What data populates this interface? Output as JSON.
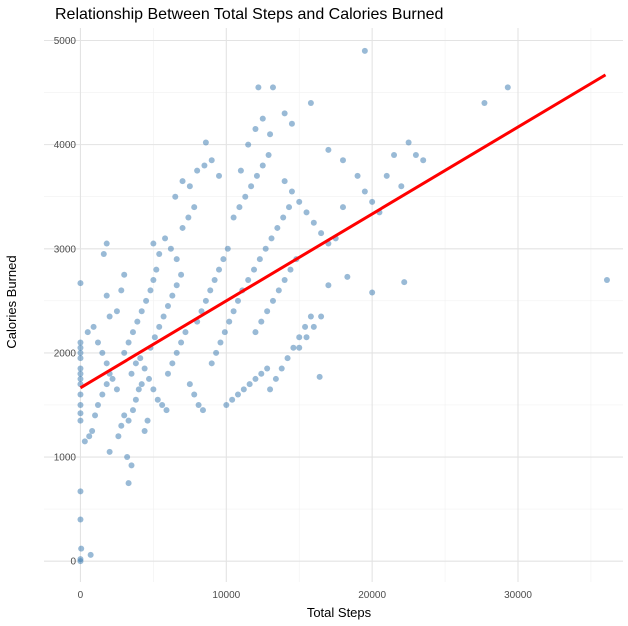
{
  "chart_data": {
    "type": "scatter",
    "title": "Relationship Between Total Steps and Calories Burned",
    "xlabel": "Total Steps",
    "ylabel": "Calories Burned",
    "xlim": [
      -2500,
      37200
    ],
    "ylim": [
      -200,
      5120
    ],
    "x_ticks": [
      0,
      10000,
      20000,
      30000
    ],
    "y_ticks": [
      0,
      1000,
      2000,
      3000,
      4000,
      5000
    ],
    "x_tick_labels": [
      "0",
      "10000",
      "20000",
      "30000"
    ],
    "y_tick_labels": [
      "0",
      "1000",
      "2000",
      "3000",
      "4000",
      "5000"
    ],
    "grid": true,
    "point_color": "#4682B4",
    "point_opacity": 0.55,
    "trend_line": {
      "color": "#FF0000",
      "x": [
        0,
        36000
      ],
      "y": [
        1665,
        4670
      ]
    },
    "points": [
      [
        0,
        0
      ],
      [
        0,
        20
      ],
      [
        50,
        120
      ],
      [
        0,
        400
      ],
      [
        0,
        670
      ],
      [
        700,
        60
      ],
      [
        0,
        1350
      ],
      [
        0,
        1420
      ],
      [
        0,
        1500
      ],
      [
        0,
        1600
      ],
      [
        0,
        1700
      ],
      [
        0,
        1750
      ],
      [
        0,
        1800
      ],
      [
        0,
        1850
      ],
      [
        0,
        1950
      ],
      [
        0,
        2000
      ],
      [
        0,
        2050
      ],
      [
        0,
        2100
      ],
      [
        0,
        2670
      ],
      [
        300,
        1150
      ],
      [
        600,
        1200
      ],
      [
        800,
        1250
      ],
      [
        1000,
        1400
      ],
      [
        1200,
        1500
      ],
      [
        1500,
        1600
      ],
      [
        1800,
        1700
      ],
      [
        2000,
        1050
      ],
      [
        500,
        2200
      ],
      [
        900,
        2250
      ],
      [
        1200,
        2100
      ],
      [
        1500,
        2000
      ],
      [
        1800,
        1900
      ],
      [
        2000,
        1800
      ],
      [
        2200,
        1750
      ],
      [
        2500,
        1650
      ],
      [
        2000,
        2350
      ],
      [
        1800,
        2550
      ],
      [
        1600,
        2950
      ],
      [
        1800,
        3050
      ],
      [
        2500,
        2400
      ],
      [
        2800,
        2600
      ],
      [
        3000,
        2750
      ],
      [
        3200,
        1000
      ],
      [
        3300,
        750
      ],
      [
        3500,
        920
      ],
      [
        2600,
        1200
      ],
      [
        2800,
        1300
      ],
      [
        3000,
        1400
      ],
      [
        3300,
        1350
      ],
      [
        3600,
        1450
      ],
      [
        3800,
        1550
      ],
      [
        4000,
        1650
      ],
      [
        4200,
        1700
      ],
      [
        4400,
        1250
      ],
      [
        4600,
        1350
      ],
      [
        3000,
        2000
      ],
      [
        3300,
        2100
      ],
      [
        3600,
        2200
      ],
      [
        3900,
        2300
      ],
      [
        4200,
        2400
      ],
      [
        4500,
        2500
      ],
      [
        4800,
        2600
      ],
      [
        5000,
        2700
      ],
      [
        5200,
        2800
      ],
      [
        3500,
        1800
      ],
      [
        3800,
        1900
      ],
      [
        4100,
        1950
      ],
      [
        4400,
        1850
      ],
      [
        4700,
        1750
      ],
      [
        5000,
        1650
      ],
      [
        5300,
        1550
      ],
      [
        5600,
        1500
      ],
      [
        5900,
        1450
      ],
      [
        4800,
        2050
      ],
      [
        5100,
        2150
      ],
      [
        5400,
        2250
      ],
      [
        5700,
        2350
      ],
      [
        6000,
        2450
      ],
      [
        6300,
        2550
      ],
      [
        6600,
        2650
      ],
      [
        6900,
        2750
      ],
      [
        5000,
        3050
      ],
      [
        5400,
        2950
      ],
      [
        5800,
        3100
      ],
      [
        6200,
        3000
      ],
      [
        6600,
        2900
      ],
      [
        7000,
        3200
      ],
      [
        7400,
        3300
      ],
      [
        7800,
        3400
      ],
      [
        6000,
        1800
      ],
      [
        6300,
        1900
      ],
      [
        6600,
        2000
      ],
      [
        6900,
        2100
      ],
      [
        7200,
        2200
      ],
      [
        7500,
        1700
      ],
      [
        7800,
        1600
      ],
      [
        8100,
        1500
      ],
      [
        8400,
        1450
      ],
      [
        6500,
        3500
      ],
      [
        7000,
        3650
      ],
      [
        7500,
        3600
      ],
      [
        8000,
        3750
      ],
      [
        8500,
        3800
      ],
      [
        9000,
        3850
      ],
      [
        8600,
        4020
      ],
      [
        9500,
        3700
      ],
      [
        8000,
        2300
      ],
      [
        8300,
        2400
      ],
      [
        8600,
        2500
      ],
      [
        8900,
        2600
      ],
      [
        9200,
        2700
      ],
      [
        9500,
        2800
      ],
      [
        9800,
        2900
      ],
      [
        10100,
        3000
      ],
      [
        9000,
        1900
      ],
      [
        9300,
        2000
      ],
      [
        9600,
        2100
      ],
      [
        9900,
        2200
      ],
      [
        10200,
        2300
      ],
      [
        10500,
        2400
      ],
      [
        10800,
        2500
      ],
      [
        11100,
        2600
      ],
      [
        10000,
        1500
      ],
      [
        10400,
        1550
      ],
      [
        10800,
        1600
      ],
      [
        11200,
        1650
      ],
      [
        11600,
        1700
      ],
      [
        12000,
        1750
      ],
      [
        12400,
        1800
      ],
      [
        12800,
        1850
      ],
      [
        10500,
        3300
      ],
      [
        10900,
        3400
      ],
      [
        11300,
        3500
      ],
      [
        11700,
        3600
      ],
      [
        12100,
        3700
      ],
      [
        12500,
        3800
      ],
      [
        12900,
        3900
      ],
      [
        11000,
        3750
      ],
      [
        11500,
        4000
      ],
      [
        12000,
        4150
      ],
      [
        12500,
        4250
      ],
      [
        13000,
        4100
      ],
      [
        12200,
        4550
      ],
      [
        13200,
        4550
      ],
      [
        14000,
        4300
      ],
      [
        14500,
        4200
      ],
      [
        15800,
        4400
      ],
      [
        11500,
        2700
      ],
      [
        11900,
        2800
      ],
      [
        12300,
        2900
      ],
      [
        12700,
        3000
      ],
      [
        13100,
        3100
      ],
      [
        13500,
        3200
      ],
      [
        13900,
        3300
      ],
      [
        14300,
        3400
      ],
      [
        12000,
        2200
      ],
      [
        12400,
        2300
      ],
      [
        12800,
        2400
      ],
      [
        13200,
        2500
      ],
      [
        13600,
        2600
      ],
      [
        14000,
        2700
      ],
      [
        14400,
        2800
      ],
      [
        14800,
        2900
      ],
      [
        13000,
        1650
      ],
      [
        13400,
        1750
      ],
      [
        13800,
        1850
      ],
      [
        14200,
        1950
      ],
      [
        14600,
        2050
      ],
      [
        15000,
        2150
      ],
      [
        15400,
        2250
      ],
      [
        15800,
        2350
      ],
      [
        14000,
        3650
      ],
      [
        14500,
        3550
      ],
      [
        15000,
        3450
      ],
      [
        15500,
        3350
      ],
      [
        16000,
        3250
      ],
      [
        16500,
        3150
      ],
      [
        17000,
        3050
      ],
      [
        15000,
        2050
      ],
      [
        15500,
        2150
      ],
      [
        16000,
        2250
      ],
      [
        16500,
        2350
      ],
      [
        16400,
        1770
      ],
      [
        17000,
        2650
      ],
      [
        17500,
        3100
      ],
      [
        18000,
        3400
      ],
      [
        18300,
        2730
      ],
      [
        17000,
        3950
      ],
      [
        18000,
        3850
      ],
      [
        19000,
        3700
      ],
      [
        19500,
        3550
      ],
      [
        20000,
        3450
      ],
      [
        20500,
        3350
      ],
      [
        21000,
        3700
      ],
      [
        21500,
        3900
      ],
      [
        20000,
        2580
      ],
      [
        22000,
        3600
      ],
      [
        22500,
        4020
      ],
      [
        23000,
        3900
      ],
      [
        23500,
        3850
      ],
      [
        22200,
        2680
      ],
      [
        19500,
        4900
      ],
      [
        27700,
        4400
      ],
      [
        29300,
        4550
      ],
      [
        36100,
        2700
      ]
    ]
  }
}
